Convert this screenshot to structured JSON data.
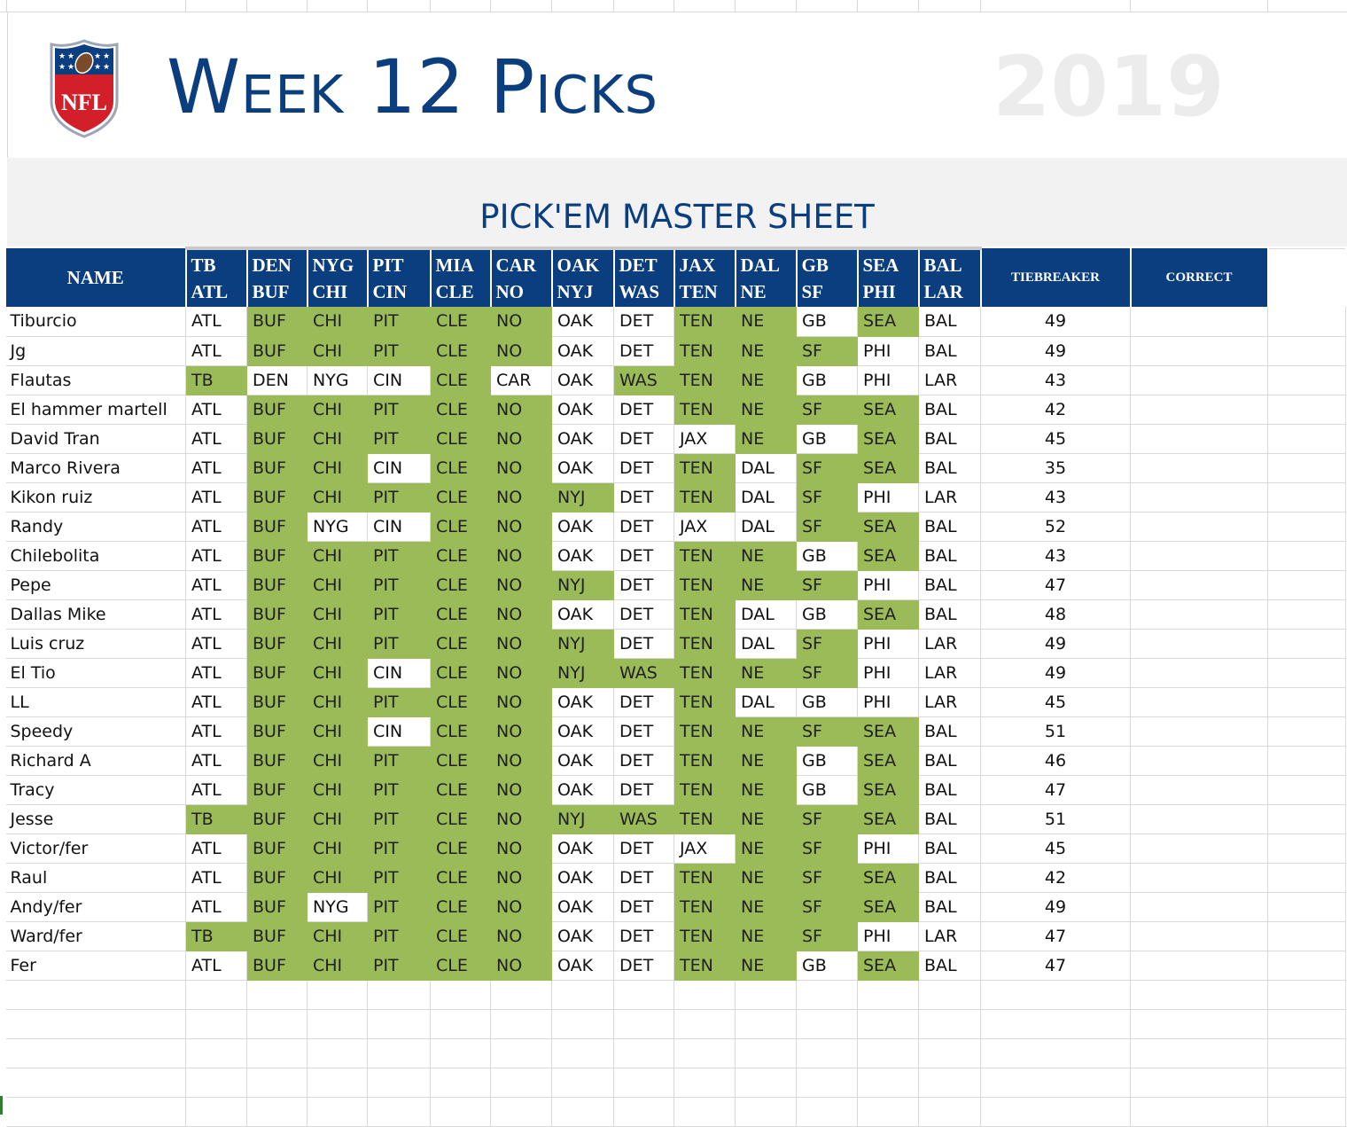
{
  "title": "Week 12 Picks",
  "year": "2019",
  "subtitle": "PICK'EM MASTER SHEET",
  "logo_text": "NFL",
  "colors": {
    "brand_blue": "#0b3e7e",
    "correct_green": "#9bbb59",
    "header_band": "#f2f2f2"
  },
  "headers": {
    "name": "NAME",
    "tiebreaker": "TIEBREAKER",
    "correct": "CORRECT"
  },
  "games": [
    {
      "away": "TB",
      "home": "ATL",
      "winner": "ATL"
    },
    {
      "away": "DEN",
      "home": "BUF",
      "winner": "BUF"
    },
    {
      "away": "NYG",
      "home": "CHI",
      "winner": "CHI"
    },
    {
      "away": "PIT",
      "home": "CIN",
      "winner": "PIT"
    },
    {
      "away": "MIA",
      "home": "CLE",
      "winner": "CLE"
    },
    {
      "away": "CAR",
      "home": "NO",
      "winner": "NO"
    },
    {
      "away": "OAK",
      "home": "NYJ",
      "winner": "NYJ"
    },
    {
      "away": "DET",
      "home": "WAS",
      "winner": "WAS"
    },
    {
      "away": "JAX",
      "home": "TEN",
      "winner": "TEN"
    },
    {
      "away": "DAL",
      "home": "NE",
      "winner": "NE"
    },
    {
      "away": "GB",
      "home": "SF",
      "winner": "SF"
    },
    {
      "away": "SEA",
      "home": "PHI",
      "winner": "SEA"
    },
    {
      "away": "BAL",
      "home": "LAR",
      "winner": "BAL"
    }
  ],
  "players": [
    {
      "name": "Tiburcio",
      "picks": [
        "ATL",
        "BUF",
        "CHI",
        "PIT",
        "CLE",
        "NO",
        "OAK",
        "DET",
        "TEN",
        "NE",
        "GB",
        "SEA",
        "BAL"
      ],
      "tiebreaker": "49"
    },
    {
      "name": "Jg",
      "picks": [
        "ATL",
        "BUF",
        "CHI",
        "PIT",
        "CLE",
        "NO",
        "OAK",
        "DET",
        "TEN",
        "NE",
        "SF",
        "PHI",
        "BAL"
      ],
      "tiebreaker": "49"
    },
    {
      "name": "Flautas",
      "picks": [
        "TB",
        "DEN",
        "NYG",
        "CIN",
        "CLE",
        "CAR",
        "OAK",
        "WAS",
        "TEN",
        "NE",
        "GB",
        "PHI",
        "LAR"
      ],
      "tiebreaker": "43"
    },
    {
      "name": "El hammer martell",
      "picks": [
        "ATL",
        "BUF",
        "CHI",
        "PIT",
        "CLE",
        "NO",
        "OAK",
        "DET",
        "TEN",
        "NE",
        "SF",
        "SEA",
        "BAL"
      ],
      "tiebreaker": "42"
    },
    {
      "name": "David Tran",
      "picks": [
        "ATL",
        "BUF",
        "CHI",
        "PIT",
        "CLE",
        "NO",
        "OAK",
        "DET",
        "JAX",
        "NE",
        "GB",
        "SEA",
        "BAL"
      ],
      "tiebreaker": "45"
    },
    {
      "name": "Marco Rivera",
      "picks": [
        "ATL",
        "BUF",
        "CHI",
        "CIN",
        "CLE",
        "NO",
        "OAK",
        "DET",
        "TEN",
        "DAL",
        "SF",
        "SEA",
        "BAL"
      ],
      "tiebreaker": "35"
    },
    {
      "name": "Kikon ruiz",
      "picks": [
        "ATL",
        "BUF",
        "CHI",
        "PIT",
        "CLE",
        "NO",
        "NYJ",
        "DET",
        "TEN",
        "DAL",
        "SF",
        "PHI",
        "LAR"
      ],
      "tiebreaker": "43"
    },
    {
      "name": "Randy",
      "picks": [
        "ATL",
        "BUF",
        "NYG",
        "CIN",
        "CLE",
        "NO",
        "OAK",
        "DET",
        "JAX",
        "DAL",
        "SF",
        "SEA",
        "BAL"
      ],
      "tiebreaker": "52"
    },
    {
      "name": "Chilebolita",
      "picks": [
        "ATL",
        "BUF",
        "CHI",
        "PIT",
        "CLE",
        "NO",
        "OAK",
        "DET",
        "TEN",
        "NE",
        "GB",
        "SEA",
        "BAL"
      ],
      "tiebreaker": "43"
    },
    {
      "name": "Pepe",
      "picks": [
        "ATL",
        "BUF",
        "CHI",
        "PIT",
        "CLE",
        "NO",
        "NYJ",
        "DET",
        "TEN",
        "NE",
        "SF",
        "PHI",
        "BAL"
      ],
      "tiebreaker": "47"
    },
    {
      "name": "Dallas Mike",
      "picks": [
        "ATL",
        "BUF",
        "CHI",
        "PIT",
        "CLE",
        "NO",
        "OAK",
        "DET",
        "TEN",
        "DAL",
        "GB",
        "SEA",
        "BAL"
      ],
      "tiebreaker": "48"
    },
    {
      "name": "Luis cruz",
      "picks": [
        "ATL",
        "BUF",
        "CHI",
        "PIT",
        "CLE",
        "NO",
        "NYJ",
        "DET",
        "TEN",
        "DAL",
        "SF",
        "PHI",
        "LAR"
      ],
      "tiebreaker": "49"
    },
    {
      "name": "El Tio",
      "picks": [
        "ATL",
        "BUF",
        "CHI",
        "CIN",
        "CLE",
        "NO",
        "NYJ",
        "WAS",
        "TEN",
        "NE",
        "SF",
        "PHI",
        "LAR"
      ],
      "tiebreaker": "49"
    },
    {
      "name": "LL",
      "picks": [
        "ATL",
        "BUF",
        "CHI",
        "PIT",
        "CLE",
        "NO",
        "OAK",
        "DET",
        "TEN",
        "DAL",
        "GB",
        "PHI",
        "LAR"
      ],
      "tiebreaker": "45"
    },
    {
      "name": "Speedy",
      "picks": [
        "ATL",
        "BUF",
        "CHI",
        "CIN",
        "CLE",
        "NO",
        "OAK",
        "DET",
        "TEN",
        "NE",
        "SF",
        "SEA",
        "BAL"
      ],
      "tiebreaker": "51"
    },
    {
      "name": "Richard A",
      "picks": [
        "ATL",
        "BUF",
        "CHI",
        "PIT",
        "CLE",
        "NO",
        "OAK",
        "DET",
        "TEN",
        "NE",
        "GB",
        "SEA",
        "BAL"
      ],
      "tiebreaker": "46"
    },
    {
      "name": "Tracy",
      "picks": [
        "ATL",
        "BUF",
        "CHI",
        "PIT",
        "CLE",
        "NO",
        "OAK",
        "DET",
        "TEN",
        "NE",
        "GB",
        "SEA",
        "BAL"
      ],
      "tiebreaker": "47"
    },
    {
      "name": "Jesse",
      "picks": [
        "TB",
        "BUF",
        "CHI",
        "PIT",
        "CLE",
        "NO",
        "NYJ",
        "WAS",
        "TEN",
        "NE",
        "SF",
        "SEA",
        "BAL"
      ],
      "tiebreaker": "51"
    },
    {
      "name": "Victor/fer",
      "picks": [
        "ATL",
        "BUF",
        "CHI",
        "PIT",
        "CLE",
        "NO",
        "OAK",
        "DET",
        "JAX",
        "NE",
        "SF",
        "PHI",
        "BAL"
      ],
      "tiebreaker": "45"
    },
    {
      "name": "Raul",
      "picks": [
        "ATL",
        "BUF",
        "CHI",
        "PIT",
        "CLE",
        "NO",
        "OAK",
        "DET",
        "TEN",
        "NE",
        "SF",
        "SEA",
        "BAL"
      ],
      "tiebreaker": "42"
    },
    {
      "name": "Andy/fer",
      "picks": [
        "ATL",
        "BUF",
        "NYG",
        "PIT",
        "CLE",
        "NO",
        "OAK",
        "DET",
        "TEN",
        "NE",
        "SF",
        "SEA",
        "BAL"
      ],
      "tiebreaker": "49"
    },
    {
      "name": "Ward/fer",
      "picks": [
        "TB",
        "BUF",
        "CHI",
        "PIT",
        "CLE",
        "NO",
        "OAK",
        "DET",
        "TEN",
        "NE",
        "SF",
        "PHI",
        "LAR"
      ],
      "tiebreaker": "47"
    },
    {
      "name": "Fer",
      "picks": [
        "ATL",
        "BUF",
        "CHI",
        "PIT",
        "CLE",
        "NO",
        "OAK",
        "DET",
        "TEN",
        "NE",
        "GB",
        "SEA",
        "BAL"
      ],
      "tiebreaker": "47"
    }
  ],
  "highlighted": [
    [
      0,
      1,
      1,
      1,
      1,
      1,
      0,
      0,
      1,
      1,
      0,
      1,
      0
    ],
    [
      0,
      1,
      1,
      1,
      1,
      1,
      0,
      0,
      1,
      1,
      1,
      0,
      0
    ],
    [
      1,
      0,
      0,
      0,
      1,
      0,
      0,
      1,
      1,
      1,
      0,
      0,
      0
    ],
    [
      0,
      1,
      1,
      1,
      1,
      1,
      0,
      0,
      1,
      1,
      1,
      1,
      0
    ],
    [
      0,
      1,
      1,
      1,
      1,
      1,
      0,
      0,
      0,
      1,
      0,
      1,
      0
    ],
    [
      0,
      1,
      1,
      0,
      1,
      1,
      0,
      0,
      1,
      0,
      1,
      1,
      0
    ],
    [
      0,
      1,
      1,
      1,
      1,
      1,
      1,
      0,
      1,
      0,
      1,
      0,
      0
    ],
    [
      0,
      1,
      0,
      0,
      1,
      1,
      0,
      0,
      0,
      0,
      1,
      1,
      0
    ],
    [
      0,
      1,
      1,
      1,
      1,
      1,
      0,
      0,
      1,
      1,
      0,
      1,
      0
    ],
    [
      0,
      1,
      1,
      1,
      1,
      1,
      1,
      0,
      1,
      1,
      1,
      0,
      0
    ],
    [
      0,
      1,
      1,
      1,
      1,
      1,
      0,
      0,
      1,
      0,
      0,
      1,
      0
    ],
    [
      0,
      1,
      1,
      1,
      1,
      1,
      1,
      0,
      1,
      0,
      1,
      0,
      0
    ],
    [
      0,
      1,
      1,
      0,
      1,
      1,
      1,
      1,
      1,
      1,
      1,
      0,
      0
    ],
    [
      0,
      1,
      1,
      1,
      1,
      1,
      0,
      0,
      1,
      0,
      0,
      0,
      0
    ],
    [
      0,
      1,
      1,
      0,
      1,
      1,
      0,
      0,
      1,
      1,
      1,
      1,
      0
    ],
    [
      0,
      1,
      1,
      1,
      1,
      1,
      0,
      0,
      1,
      1,
      0,
      1,
      0
    ],
    [
      0,
      1,
      1,
      1,
      1,
      1,
      0,
      0,
      1,
      1,
      0,
      1,
      0
    ],
    [
      1,
      1,
      1,
      1,
      1,
      1,
      1,
      1,
      1,
      1,
      1,
      1,
      0
    ],
    [
      0,
      1,
      1,
      1,
      1,
      1,
      0,
      0,
      0,
      1,
      1,
      0,
      0
    ],
    [
      0,
      1,
      1,
      1,
      1,
      1,
      0,
      0,
      1,
      1,
      1,
      1,
      0
    ],
    [
      0,
      1,
      0,
      1,
      1,
      1,
      0,
      0,
      1,
      1,
      1,
      1,
      0
    ],
    [
      1,
      1,
      1,
      1,
      1,
      1,
      0,
      0,
      1,
      1,
      1,
      0,
      0
    ],
    [
      0,
      1,
      1,
      1,
      1,
      1,
      0,
      0,
      1,
      1,
      0,
      1,
      0
    ]
  ]
}
